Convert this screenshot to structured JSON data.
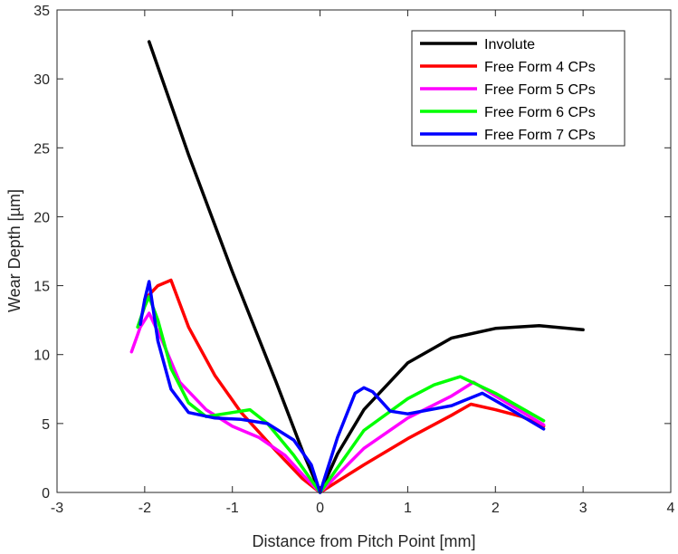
{
  "chart_data": {
    "type": "line",
    "xlabel": "Distance from Pitch Point [mm]",
    "ylabel": "Wear Depth [µm]",
    "xlim": [
      -3,
      4
    ],
    "ylim": [
      0,
      35
    ],
    "xticks": [
      -3,
      -2,
      -1,
      0,
      1,
      2,
      3,
      4
    ],
    "yticks": [
      0,
      5,
      10,
      15,
      20,
      25,
      30,
      35
    ],
    "xtick_labels": [
      "-3",
      "-2",
      "-1",
      "0",
      "1",
      "2",
      "3",
      "4"
    ],
    "ytick_labels": [
      "0",
      "5",
      "10",
      "15",
      "20",
      "25",
      "30",
      "35"
    ],
    "grid": false,
    "legend_position": "top-right",
    "series": [
      {
        "name": "Involute",
        "color": "#000000",
        "points": [
          [
            -1.95,
            32.7
          ],
          [
            -1.5,
            24.5
          ],
          [
            -1.0,
            16.0
          ],
          [
            -0.5,
            8.0
          ],
          [
            -0.2,
            3.0
          ],
          [
            0.0,
            0.0
          ],
          [
            0.2,
            2.8
          ],
          [
            0.5,
            6.0
          ],
          [
            1.0,
            9.4
          ],
          [
            1.5,
            11.2
          ],
          [
            2.0,
            11.9
          ],
          [
            2.5,
            12.1
          ],
          [
            3.0,
            11.8
          ]
        ]
      },
      {
        "name": "Free Form 4 CPs",
        "color": "#ff0000",
        "points": [
          [
            -2.0,
            14.0
          ],
          [
            -1.85,
            15.0
          ],
          [
            -1.7,
            15.4
          ],
          [
            -1.5,
            12.0
          ],
          [
            -1.2,
            8.5
          ],
          [
            -0.9,
            5.8
          ],
          [
            -0.5,
            3.0
          ],
          [
            -0.2,
            1.0
          ],
          [
            0.0,
            0.0
          ],
          [
            0.5,
            2.0
          ],
          [
            1.0,
            3.9
          ],
          [
            1.5,
            5.6
          ],
          [
            1.72,
            6.4
          ],
          [
            2.0,
            6.0
          ],
          [
            2.3,
            5.5
          ],
          [
            2.55,
            4.8
          ]
        ]
      },
      {
        "name": "Free Form 5 CPs",
        "color": "#ff00ff",
        "points": [
          [
            -2.15,
            10.2
          ],
          [
            -2.05,
            12.0
          ],
          [
            -1.95,
            13.0
          ],
          [
            -1.8,
            11.0
          ],
          [
            -1.6,
            8.0
          ],
          [
            -1.3,
            6.0
          ],
          [
            -1.0,
            4.8
          ],
          [
            -0.7,
            4.0
          ],
          [
            -0.4,
            2.7
          ],
          [
            -0.2,
            1.3
          ],
          [
            0.0,
            0.0
          ],
          [
            0.5,
            3.2
          ],
          [
            1.0,
            5.4
          ],
          [
            1.5,
            7.0
          ],
          [
            1.75,
            8.0
          ],
          [
            2.0,
            7.0
          ],
          [
            2.55,
            4.9
          ]
        ]
      },
      {
        "name": "Free Form 6 CPs",
        "color": "#00ff00",
        "points": [
          [
            -2.08,
            12.0
          ],
          [
            -2.0,
            13.5
          ],
          [
            -1.95,
            14.2
          ],
          [
            -1.85,
            12.5
          ],
          [
            -1.7,
            9.0
          ],
          [
            -1.5,
            6.5
          ],
          [
            -1.3,
            5.5
          ],
          [
            -1.0,
            5.8
          ],
          [
            -0.8,
            6.0
          ],
          [
            -0.6,
            5.0
          ],
          [
            -0.3,
            2.7
          ],
          [
            0.0,
            0.0
          ],
          [
            0.5,
            4.5
          ],
          [
            1.0,
            6.8
          ],
          [
            1.3,
            7.8
          ],
          [
            1.6,
            8.4
          ],
          [
            2.0,
            7.2
          ],
          [
            2.55,
            5.2
          ]
        ]
      },
      {
        "name": "Free Form 7 CPs",
        "color": "#0000ff",
        "points": [
          [
            -2.05,
            12.2
          ],
          [
            -2.0,
            14.0
          ],
          [
            -1.95,
            15.3
          ],
          [
            -1.85,
            11.0
          ],
          [
            -1.7,
            7.5
          ],
          [
            -1.5,
            5.8
          ],
          [
            -1.2,
            5.4
          ],
          [
            -0.9,
            5.3
          ],
          [
            -0.6,
            5.0
          ],
          [
            -0.3,
            3.8
          ],
          [
            -0.1,
            2.0
          ],
          [
            0.0,
            0.0
          ],
          [
            0.2,
            4.0
          ],
          [
            0.4,
            7.2
          ],
          [
            0.5,
            7.6
          ],
          [
            0.6,
            7.3
          ],
          [
            0.8,
            5.9
          ],
          [
            1.0,
            5.7
          ],
          [
            1.5,
            6.3
          ],
          [
            1.85,
            7.2
          ],
          [
            2.1,
            6.3
          ],
          [
            2.55,
            4.6
          ]
        ]
      }
    ]
  }
}
